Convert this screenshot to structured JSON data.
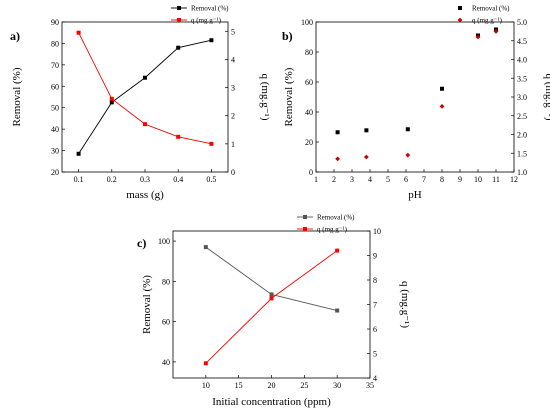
{
  "chart_data": [
    {
      "panel_label": "a)",
      "type": "line",
      "xlabel": "mass (g)",
      "ylabel": "Removal (%)",
      "y2label": "q (mg.g⁻¹)",
      "xlim": [
        0.05,
        0.55
      ],
      "ylim": [
        20,
        90
      ],
      "y2lim": [
        0,
        5.33
      ],
      "xticks": [
        "0.1",
        "0.2",
        "0.3",
        "0.4",
        "0.5"
      ],
      "yticks": [
        "20",
        "30",
        "40",
        "50",
        "60",
        "70",
        "80",
        "90"
      ],
      "y2ticks": [
        "0",
        "1",
        "2",
        "3",
        "4",
        "5"
      ],
      "x": [
        0.1,
        0.2,
        0.3,
        0.4,
        0.5
      ],
      "legend_position": "top-right",
      "series": [
        {
          "name": "Removal (%)",
          "axis": "left",
          "color": "#000000",
          "marker": "square",
          "values": [
            28.5,
            52.5,
            64,
            78,
            81.5
          ]
        },
        {
          "name": "q (mg.g⁻¹)",
          "axis": "right",
          "color": "#ff0000",
          "marker": "square",
          "values": [
            4.95,
            2.6,
            1.7,
            1.25,
            1.0
          ]
        }
      ]
    },
    {
      "panel_label": "b)",
      "type": "scatter",
      "xlabel": "pH",
      "ylabel": "Removal (%)",
      "y2label": "q (mg.g⁻¹)",
      "xlim": [
        1,
        12
      ],
      "ylim": [
        0,
        100
      ],
      "y2lim": [
        1.0,
        5.0
      ],
      "xticks": [
        "1",
        "2",
        "3",
        "4",
        "5",
        "6",
        "7",
        "8",
        "9",
        "10",
        "11",
        "12"
      ],
      "yticks": [
        "0",
        "20",
        "40",
        "60",
        "80",
        "100"
      ],
      "y2ticks": [
        "1.0",
        "1.5",
        "2.0",
        "2.5",
        "3.0",
        "3.5",
        "4.0",
        "4.5",
        "5.0"
      ],
      "legend_position": "top-right",
      "series": [
        {
          "name": "Removal (%)",
          "axis": "left",
          "color": "#000000",
          "marker": "square",
          "x": [
            2.2,
            3.8,
            6.1,
            8.0,
            10.0,
            11.0
          ],
          "values": [
            26.5,
            27.8,
            28.5,
            55.5,
            91,
            95
          ]
        },
        {
          "name": "q (mg.g⁻¹)",
          "axis": "right",
          "color": "#cc0000",
          "marker": "diamond",
          "x": [
            2.2,
            3.8,
            6.1,
            8.0,
            10.0,
            11.0
          ],
          "values": [
            1.35,
            1.4,
            1.45,
            2.75,
            4.6,
            4.75
          ]
        }
      ]
    },
    {
      "panel_label": "c)",
      "type": "line",
      "xlabel": "Initial concentration (ppm)",
      "ylabel": "Removal (%)",
      "y2label": "q (mg.g⁻¹)",
      "xlim": [
        5,
        35
      ],
      "ylim": [
        32,
        105
      ],
      "y2lim": [
        4,
        10
      ],
      "xticks": [
        "10",
        "15",
        "20",
        "25",
        "30",
        "35"
      ],
      "yticks": [
        "40",
        "60",
        "80",
        "100"
      ],
      "y2ticks": [
        "4",
        "5",
        "6",
        "7",
        "8",
        "9",
        "10"
      ],
      "x": [
        10,
        20,
        30
      ],
      "legend_position": "top-right",
      "series": [
        {
          "name": "Removal (%)",
          "axis": "left",
          "color": "#555555",
          "marker": "square",
          "values": [
            97,
            73.5,
            65.5
          ]
        },
        {
          "name": "q (mg.g⁻¹)",
          "axis": "right",
          "color": "#ff0000",
          "marker": "square",
          "values": [
            4.6,
            7.25,
            9.2
          ]
        }
      ]
    }
  ]
}
